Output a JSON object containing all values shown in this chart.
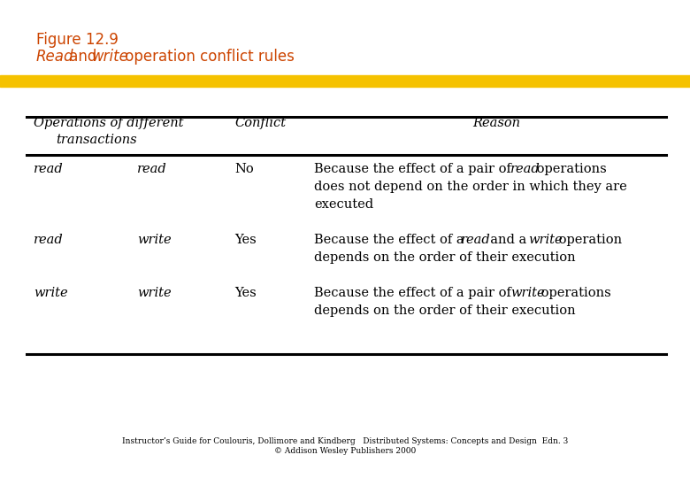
{
  "title_color": "#CC4400",
  "gold_bar_color": "#F5C200",
  "background_color": "#FFFFFF",
  "footer_line1": "Instructor’s Guide for Coulouris, Dollimore and Kindberg   Distributed Systems: Concepts and Design  Edn. 3",
  "footer_line2": "© Addison Wesley Publishers 2000"
}
